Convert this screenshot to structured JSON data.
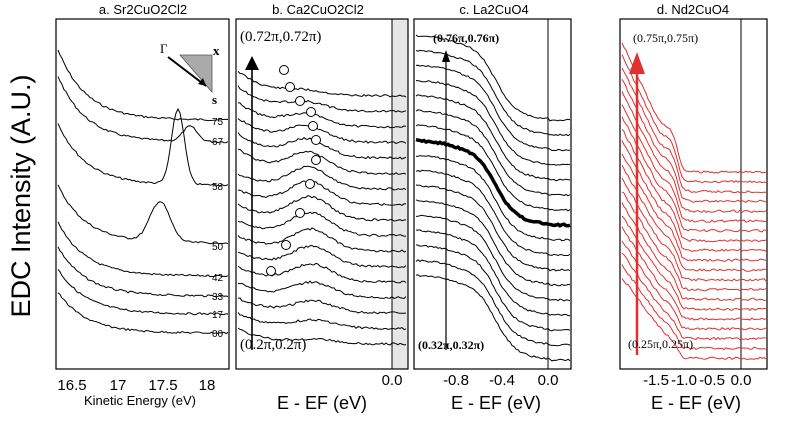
{
  "figure": {
    "y_axis_label": "EDC Intensity (A.U.)"
  },
  "chart_data": [
    {
      "type": "line",
      "panel": "a",
      "title": "a. Sr2CuO2Cl2",
      "xlabel": "Kinetic Energy (eV)",
      "ylabel": "EDC Intensity (A.U.)",
      "xlim": [
        16.4,
        18.2
      ],
      "x_ticks": [
        "16.5",
        "17",
        "17.5",
        "18"
      ],
      "x_tick_values": [
        16.5,
        17.0,
        17.5,
        18.0
      ],
      "curve_labels": [
        "75",
        "67",
        "58",
        "50",
        "42",
        "33",
        "17",
        "00"
      ],
      "inset": {
        "gamma": "Γ",
        "x": "x",
        "s": "s"
      },
      "peak_positions_eV": [
        17.45,
        17.7,
        17.8,
        17.85
      ]
    },
    {
      "type": "line",
      "panel": "b",
      "title": "b. Ca2CuO2Cl2",
      "xlabel": "E - EF (eV)",
      "xlim": [
        -1.0,
        0.15
      ],
      "x_ticks": [
        "0.0"
      ],
      "x_tick_values": [
        0.0
      ],
      "k_start": "(0.2π,0.2π)",
      "k_end": "(0.72π,0.72π)",
      "n_curves": 17,
      "peak_marker_energies_eV": [
        -0.7,
        -0.62,
        -0.54,
        -0.46,
        -0.42,
        -0.42,
        -0.43,
        -0.42,
        -0.41,
        -0.44,
        -0.46
      ]
    },
    {
      "type": "line",
      "panel": "c",
      "title": "c. La2CuO4",
      "xlabel": "E - EF (eV)",
      "xlim": [
        -1.1,
        0.15
      ],
      "x_ticks": [
        "-0.8",
        "-0.4",
        "0.0"
      ],
      "x_tick_values": [
        -0.8,
        -0.4,
        0.0
      ],
      "k_start": "(0.32π,0.32π)",
      "k_end": "(0.76π,0.76π)",
      "n_curves": 17,
      "highlighted_curve_index": 7
    },
    {
      "type": "line",
      "panel": "d",
      "title": "d. Nd2CuO4",
      "xlabel": "E - EF (eV)",
      "xlim": [
        -1.9,
        0.3
      ],
      "x_ticks": [
        "-1.5",
        "-1.0",
        "-0.5",
        "0.0"
      ],
      "x_tick_values": [
        -1.5,
        -1.0,
        -0.5,
        0.0
      ],
      "k_start": "(0.25π,0.25π)",
      "k_end": "(0.75π,0.75π)",
      "n_curves": 20,
      "line_color": "#e03030"
    }
  ]
}
